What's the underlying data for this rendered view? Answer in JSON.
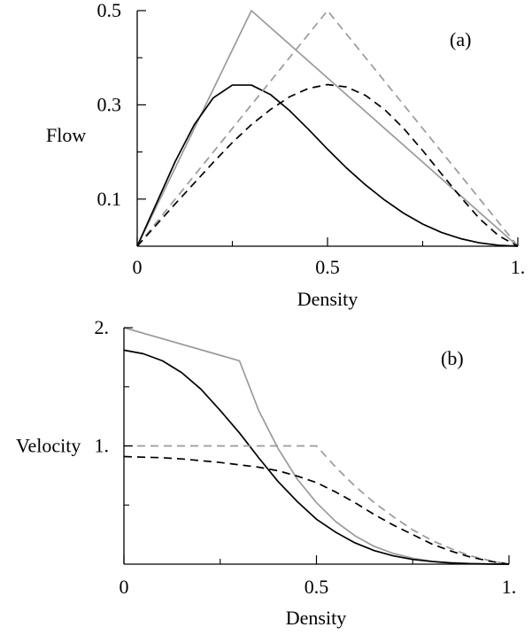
{
  "chart_data": [
    {
      "type": "line",
      "panel_label": "(a)",
      "xlabel": "Density",
      "ylabel": "Flow",
      "xlim": [
        0,
        1
      ],
      "ylim": [
        0,
        0.5
      ],
      "x_ticks": [
        {
          "v": 0,
          "label": "0"
        },
        {
          "v": 0.5,
          "label": "0.5"
        },
        {
          "v": 1,
          "label": "1."
        }
      ],
      "x_minor": [
        0.25,
        0.75
      ],
      "y_ticks": [
        {
          "v": 0.1,
          "label": "0.1"
        },
        {
          "v": 0.3,
          "label": "0.3"
        },
        {
          "v": 0.5,
          "label": "0.5"
        }
      ],
      "y_minor": [
        0.2,
        0.4
      ],
      "grid": false,
      "series": [
        {
          "color": "#9a9a9a",
          "dash": "solid",
          "x": [
            0,
            0.3,
            1
          ],
          "y": [
            0,
            0.5,
            0
          ]
        },
        {
          "color": "#000000",
          "dash": "solid",
          "x": [
            0,
            0.05,
            0.1,
            0.15,
            0.2,
            0.25,
            0.3,
            0.35,
            0.4,
            0.45,
            0.5,
            0.55,
            0.6,
            0.65,
            0.7,
            0.75,
            0.8,
            0.85,
            0.9,
            0.95,
            1
          ],
          "y": [
            0,
            0.09,
            0.18,
            0.258,
            0.315,
            0.342,
            0.342,
            0.322,
            0.288,
            0.248,
            0.206,
            0.166,
            0.13,
            0.098,
            0.07,
            0.047,
            0.029,
            0.016,
            0.007,
            0.002,
            0
          ]
        },
        {
          "color": "#9a9a9a",
          "dash": "dashed",
          "x": [
            0,
            0.5,
            1
          ],
          "y": [
            0,
            0.5,
            0
          ]
        },
        {
          "color": "#000000",
          "dash": "dashed",
          "x": [
            0,
            0.05,
            0.1,
            0.15,
            0.2,
            0.25,
            0.3,
            0.35,
            0.4,
            0.45,
            0.5,
            0.55,
            0.6,
            0.65,
            0.7,
            0.75,
            0.8,
            0.85,
            0.9,
            0.95,
            1
          ],
          "y": [
            0,
            0.045,
            0.09,
            0.134,
            0.178,
            0.22,
            0.258,
            0.29,
            0.317,
            0.335,
            0.343,
            0.338,
            0.32,
            0.29,
            0.25,
            0.203,
            0.153,
            0.104,
            0.058,
            0.022,
            0
          ]
        }
      ]
    },
    {
      "type": "line",
      "panel_label": "(b)",
      "xlabel": "Density",
      "ylabel": "Velocity",
      "xlim": [
        0,
        1
      ],
      "ylim": [
        0,
        2
      ],
      "x_ticks": [
        {
          "v": 0,
          "label": "0"
        },
        {
          "v": 0.5,
          "label": "0.5"
        },
        {
          "v": 1,
          "label": "1."
        }
      ],
      "x_minor": [
        0.25,
        0.75
      ],
      "y_ticks": [
        {
          "v": 1,
          "label": "1."
        },
        {
          "v": 2,
          "label": "2."
        }
      ],
      "y_minor": [
        0.5,
        1.5
      ],
      "grid": false,
      "series": [
        {
          "color": "#9a9a9a",
          "dash": "solid",
          "x": [
            0,
            0.3,
            0.35,
            0.4,
            0.45,
            0.5,
            0.55,
            0.6,
            0.65,
            0.7,
            0.75,
            0.8,
            0.85,
            0.9,
            0.95,
            1
          ],
          "y": [
            2.0,
            1.72,
            1.3,
            0.98,
            0.72,
            0.52,
            0.36,
            0.24,
            0.15,
            0.09,
            0.05,
            0.025,
            0.012,
            0.005,
            0.002,
            0
          ]
        },
        {
          "color": "#000000",
          "dash": "solid",
          "x": [
            0,
            0.05,
            0.1,
            0.15,
            0.2,
            0.25,
            0.3,
            0.35,
            0.4,
            0.45,
            0.5,
            0.55,
            0.6,
            0.65,
            0.7,
            0.75,
            0.8,
            0.85,
            0.9,
            0.95,
            1
          ],
          "y": [
            1.81,
            1.78,
            1.72,
            1.62,
            1.48,
            1.3,
            1.11,
            0.9,
            0.7,
            0.53,
            0.38,
            0.27,
            0.18,
            0.115,
            0.07,
            0.04,
            0.022,
            0.01,
            0.004,
            0.001,
            0
          ]
        },
        {
          "color": "#9a9a9a",
          "dash": "dashed",
          "x": [
            0,
            0.5,
            0.55,
            0.6,
            0.65,
            0.7,
            0.75,
            0.8,
            0.85,
            0.9,
            0.95,
            1
          ],
          "y": [
            1.0,
            1.0,
            0.82,
            0.66,
            0.52,
            0.4,
            0.29,
            0.2,
            0.13,
            0.07,
            0.03,
            0
          ]
        },
        {
          "color": "#000000",
          "dash": "dashed",
          "x": [
            0,
            0.05,
            0.1,
            0.15,
            0.2,
            0.25,
            0.3,
            0.35,
            0.4,
            0.45,
            0.5,
            0.55,
            0.6,
            0.65,
            0.7,
            0.75,
            0.8,
            0.85,
            0.9,
            0.95,
            1
          ],
          "y": [
            0.91,
            0.905,
            0.9,
            0.89,
            0.875,
            0.86,
            0.84,
            0.82,
            0.79,
            0.745,
            0.69,
            0.61,
            0.52,
            0.42,
            0.33,
            0.25,
            0.17,
            0.11,
            0.06,
            0.025,
            0
          ]
        }
      ]
    }
  ]
}
